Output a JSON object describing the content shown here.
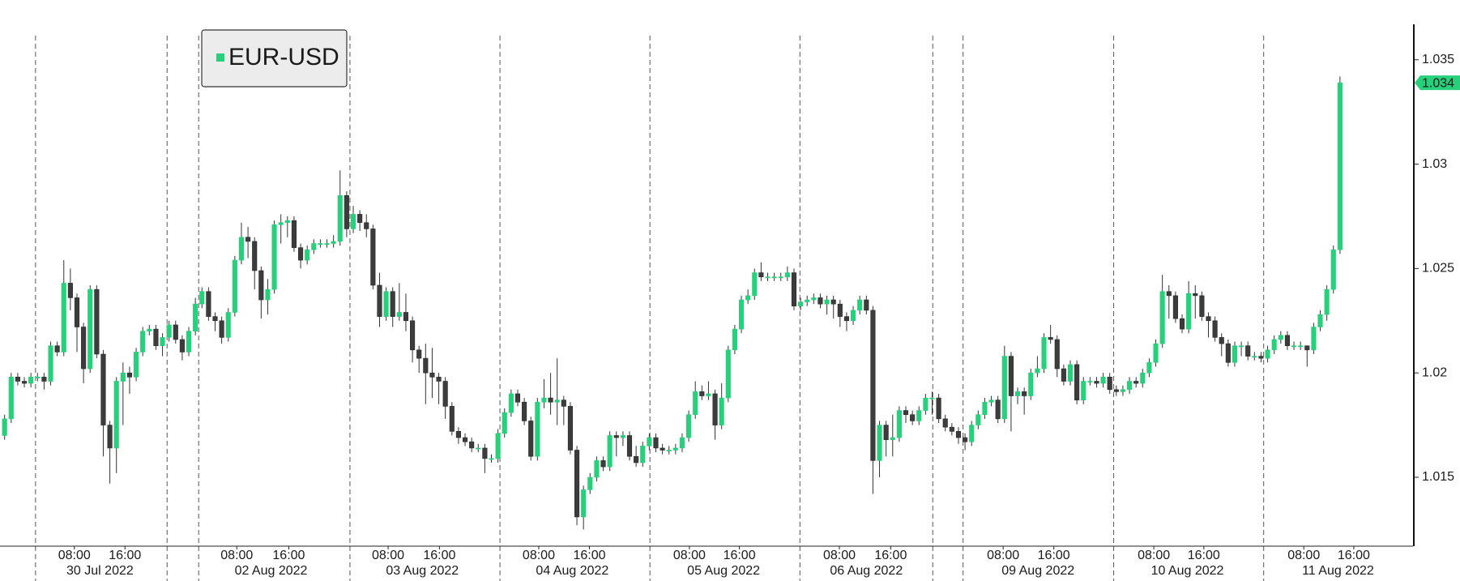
{
  "chart_data": {
    "type": "candlestick",
    "series": [
      {
        "name": "EUR-USD",
        "color": "#27d07b",
        "down_color": "#3c3c3c",
        "open": [
          1.017,
          1.0178,
          1.0198,
          1.0196,
          1.0195,
          1.0198,
          1.0198,
          1.0196,
          1.0213,
          1.021,
          1.0243,
          1.0236,
          1.0222,
          1.0202,
          1.024,
          1.0209,
          1.0175,
          1.0164,
          1.0196,
          1.02,
          1.0198,
          1.021,
          1.022,
          1.0221,
          1.0213,
          1.0217,
          1.0223,
          1.0216,
          1.021,
          1.022,
          1.0233,
          1.0239,
          1.0227,
          1.0225,
          1.0217,
          1.0229,
          1.0254,
          1.0265,
          1.0263,
          1.0249,
          1.0235,
          1.024,
          1.0271,
          1.0272,
          1.0273,
          1.026,
          1.0254,
          1.0259,
          1.0262,
          1.0262,
          1.0262,
          1.0263,
          1.0285,
          1.0269,
          1.0276,
          1.0272,
          1.0269,
          1.0242,
          1.0227,
          1.0239,
          1.0227,
          1.0229,
          1.0225,
          1.0211,
          1.0207,
          1.02,
          1.0198,
          1.0196,
          1.0184,
          1.0172,
          1.0169,
          1.0167,
          1.0164,
          1.0164,
          1.0159,
          1.0159,
          1.0171,
          1.0181,
          1.019,
          1.0186,
          1.0177,
          1.016,
          1.0186,
          1.0188,
          1.0186,
          1.0187,
          1.0184,
          1.0163,
          1.0131,
          1.0144,
          1.015,
          1.0158,
          1.0155,
          1.017,
          1.0169,
          1.017,
          1.016,
          1.0157,
          1.0165,
          1.0169,
          1.0164,
          1.0163,
          1.0163,
          1.0164,
          1.0169,
          1.018,
          1.0191,
          1.0189,
          1.019,
          1.0175,
          1.0188,
          1.0211,
          1.0221,
          1.0235,
          1.0237,
          1.0248,
          1.0246,
          1.0246,
          1.0246,
          1.0246,
          1.0248,
          1.0232,
          1.0234,
          1.0235,
          1.0236,
          1.0233,
          1.0235,
          1.0233,
          1.0227,
          1.0225,
          1.023,
          1.0235,
          1.023,
          1.0158,
          1.0175,
          1.0168,
          1.0169,
          1.0182,
          1.018,
          1.0177,
          1.0182,
          1.0188,
          1.0188,
          1.0178,
          1.0174,
          1.0172,
          1.0169,
          1.0167,
          1.0175,
          1.018,
          1.0186,
          1.0187,
          1.0178,
          1.0208,
          1.0189,
          1.0191,
          1.0189,
          1.02,
          1.0202,
          1.0217,
          1.0216,
          1.0202,
          1.0196,
          1.0204,
          1.0187,
          1.0196,
          1.0196,
          1.0195,
          1.0198,
          1.0192,
          1.0191,
          1.0192,
          1.0196,
          1.0195,
          1.02,
          1.0205,
          1.0214,
          1.0239,
          1.0237,
          1.0226,
          1.0221,
          1.0238,
          1.0237,
          1.0227,
          1.0225,
          1.0217,
          1.0214,
          1.0205,
          1.0213,
          1.0213,
          1.0208,
          1.0208,
          1.0207,
          1.0211,
          1.0216,
          1.0218,
          1.0213,
          1.0213,
          1.0213,
          1.0211,
          1.0222,
          1.0228,
          1.024,
          1.0259
        ],
        "high": [
          1.018,
          1.02,
          1.02,
          1.0198,
          1.02,
          1.02,
          1.02,
          1.0215,
          1.0215,
          1.0254,
          1.025,
          1.0238,
          1.0224,
          1.0242,
          1.0242,
          1.0211,
          1.0177,
          1.0198,
          1.0205,
          1.0203,
          1.0212,
          1.0222,
          1.0223,
          1.0223,
          1.0219,
          1.0225,
          1.0225,
          1.0218,
          1.0222,
          1.0236,
          1.0241,
          1.0241,
          1.0229,
          1.0227,
          1.0231,
          1.0256,
          1.0272,
          1.027,
          1.0265,
          1.0251,
          1.0245,
          1.0273,
          1.0276,
          1.0275,
          1.0275,
          1.0262,
          1.0261,
          1.0264,
          1.0264,
          1.0264,
          1.0266,
          1.0297,
          1.0287,
          1.028,
          1.0278,
          1.0276,
          1.0271,
          1.0248,
          1.0241,
          1.0241,
          1.0243,
          1.0238,
          1.0227,
          1.0213,
          1.0214,
          1.0212,
          1.02,
          1.0198,
          1.0186,
          1.0174,
          1.0171,
          1.0169,
          1.0166,
          1.0166,
          1.0161,
          1.0173,
          1.0183,
          1.0192,
          1.0192,
          1.0188,
          1.0179,
          1.0188,
          1.0197,
          1.02,
          1.0207,
          1.0189,
          1.0186,
          1.0165,
          1.0146,
          1.0152,
          1.016,
          1.016,
          1.0172,
          1.0172,
          1.0172,
          1.0172,
          1.0165,
          1.0167,
          1.0171,
          1.0171,
          1.0166,
          1.0165,
          1.0166,
          1.0171,
          1.0182,
          1.0196,
          1.0194,
          1.0196,
          1.0192,
          1.0195,
          1.0213,
          1.0223,
          1.0237,
          1.024,
          1.025,
          1.0253,
          1.0248,
          1.0248,
          1.0248,
          1.0251,
          1.025,
          1.0236,
          1.0237,
          1.0238,
          1.0238,
          1.0237,
          1.0237,
          1.0235,
          1.0229,
          1.0232,
          1.0237,
          1.0237,
          1.0232,
          1.0177,
          1.0177,
          1.018,
          1.0184,
          1.0184,
          1.0182,
          1.0184,
          1.019,
          1.0191,
          1.019,
          1.018,
          1.0176,
          1.0174,
          1.0171,
          1.0177,
          1.0182,
          1.0188,
          1.0189,
          1.0189,
          1.0213,
          1.021,
          1.0193,
          1.0193,
          1.0202,
          1.0208,
          1.0219,
          1.0223,
          1.0218,
          1.0204,
          1.0206,
          1.0206,
          1.0198,
          1.0198,
          1.0198,
          1.02,
          1.02,
          1.0194,
          1.0194,
          1.0198,
          1.0198,
          1.0202,
          1.0207,
          1.0216,
          1.0247,
          1.0242,
          1.0239,
          1.0228,
          1.0244,
          1.0242,
          1.0239,
          1.0229,
          1.0227,
          1.0219,
          1.0216,
          1.0215,
          1.0215,
          1.0215,
          1.021,
          1.021,
          1.0213,
          1.0218,
          1.022,
          1.022,
          1.0215,
          1.0215,
          1.0213,
          1.0224,
          1.023,
          1.0242,
          1.0261,
          1.0342
        ],
        "low": [
          1.0168,
          1.0176,
          1.0194,
          1.0193,
          1.0193,
          1.0196,
          1.0192,
          1.0194,
          1.0208,
          1.0208,
          1.023,
          1.021,
          1.0195,
          1.02,
          1.0207,
          1.016,
          1.0147,
          1.0152,
          1.0175,
          1.019,
          1.0196,
          1.0208,
          1.0218,
          1.0211,
          1.0208,
          1.0215,
          1.0214,
          1.0206,
          1.0208,
          1.0218,
          1.0231,
          1.0225,
          1.022,
          1.0214,
          1.0215,
          1.0227,
          1.0252,
          1.0255,
          1.024,
          1.0226,
          1.0228,
          1.0238,
          1.0262,
          1.0265,
          1.0258,
          1.025,
          1.0252,
          1.0257,
          1.026,
          1.026,
          1.026,
          1.0261,
          1.0265,
          1.0267,
          1.0268,
          1.0265,
          1.024,
          1.0222,
          1.0225,
          1.0222,
          1.0225,
          1.022,
          1.0205,
          1.02,
          1.0185,
          1.0188,
          1.0185,
          1.0178,
          1.017,
          1.0166,
          1.0165,
          1.0162,
          1.0162,
          1.0152,
          1.0157,
          1.0157,
          1.0169,
          1.0179,
          1.0184,
          1.0175,
          1.0158,
          1.0158,
          1.0183,
          1.018,
          1.0175,
          1.0175,
          1.0161,
          1.0127,
          1.0125,
          1.0142,
          1.0148,
          1.0153,
          1.0153,
          1.016,
          1.0165,
          1.0158,
          1.0155,
          1.0155,
          1.0163,
          1.0162,
          1.0161,
          1.0161,
          1.0161,
          1.0162,
          1.0167,
          1.0178,
          1.0187,
          1.0187,
          1.0168,
          1.0173,
          1.0186,
          1.0209,
          1.0219,
          1.0233,
          1.0235,
          1.0244,
          1.0244,
          1.0244,
          1.0244,
          1.0244,
          1.023,
          1.023,
          1.0232,
          1.0233,
          1.0231,
          1.0228,
          1.0226,
          1.0222,
          1.022,
          1.0223,
          1.0228,
          1.0228,
          1.0142,
          1.015,
          1.016,
          1.016,
          1.0167,
          1.0176,
          1.0175,
          1.0175,
          1.018,
          1.018,
          1.0176,
          1.0172,
          1.017,
          1.0166,
          1.0163,
          1.0165,
          1.0173,
          1.0178,
          1.0184,
          1.0176,
          1.0176,
          1.0172,
          1.0185,
          1.018,
          1.0187,
          1.0198,
          1.02,
          1.0214,
          1.0198,
          1.0194,
          1.0194,
          1.0185,
          1.0185,
          1.0194,
          1.0193,
          1.0193,
          1.019,
          1.0189,
          1.0189,
          1.019,
          1.0193,
          1.0193,
          1.0198,
          1.0203,
          1.0212,
          1.0226,
          1.0224,
          1.0219,
          1.0219,
          1.0226,
          1.0225,
          1.0217,
          1.0215,
          1.0208,
          1.0203,
          1.0203,
          1.0208,
          1.0206,
          1.0206,
          1.0205,
          1.0205,
          1.0209,
          1.0214,
          1.0211,
          1.0211,
          1.0211,
          1.0203,
          1.0209,
          1.022,
          1.0225,
          1.0238,
          1.0257
        ],
        "close": [
          1.0178,
          1.0198,
          1.0196,
          1.0195,
          1.0198,
          1.0198,
          1.0196,
          1.0213,
          1.021,
          1.0243,
          1.0236,
          1.0222,
          1.0202,
          1.024,
          1.0209,
          1.0175,
          1.0164,
          1.0196,
          1.02,
          1.0198,
          1.021,
          1.022,
          1.0221,
          1.0213,
          1.0217,
          1.0223,
          1.0216,
          1.021,
          1.022,
          1.0233,
          1.0239,
          1.0227,
          1.0225,
          1.0217,
          1.0229,
          1.0254,
          1.0265,
          1.0263,
          1.0249,
          1.0235,
          1.024,
          1.0271,
          1.0272,
          1.0273,
          1.026,
          1.0254,
          1.0259,
          1.0262,
          1.0262,
          1.0262,
          1.0263,
          1.0285,
          1.0269,
          1.0276,
          1.0272,
          1.0269,
          1.0242,
          1.0227,
          1.0239,
          1.0227,
          1.0229,
          1.0225,
          1.0211,
          1.0207,
          1.02,
          1.0198,
          1.0196,
          1.0184,
          1.0172,
          1.0169,
          1.0167,
          1.0164,
          1.0164,
          1.0159,
          1.0159,
          1.0171,
          1.0181,
          1.019,
          1.0186,
          1.0177,
          1.016,
          1.0186,
          1.0188,
          1.0186,
          1.0187,
          1.0184,
          1.0163,
          1.0131,
          1.0144,
          1.015,
          1.0158,
          1.0155,
          1.017,
          1.0169,
          1.017,
          1.016,
          1.0157,
          1.0165,
          1.0169,
          1.0164,
          1.0163,
          1.0163,
          1.0164,
          1.0169,
          1.018,
          1.0191,
          1.0189,
          1.019,
          1.0175,
          1.0188,
          1.0211,
          1.0221,
          1.0235,
          1.0237,
          1.0248,
          1.0246,
          1.0246,
          1.0246,
          1.0246,
          1.0248,
          1.0232,
          1.0234,
          1.0235,
          1.0236,
          1.0233,
          1.0235,
          1.0233,
          1.0227,
          1.0225,
          1.023,
          1.0235,
          1.023,
          1.0158,
          1.0175,
          1.0168,
          1.0169,
          1.0182,
          1.018,
          1.0177,
          1.0182,
          1.0188,
          1.0188,
          1.0178,
          1.0174,
          1.0172,
          1.0169,
          1.0167,
          1.0175,
          1.018,
          1.0186,
          1.0187,
          1.0178,
          1.0208,
          1.0189,
          1.0191,
          1.0189,
          1.02,
          1.0202,
          1.0217,
          1.0216,
          1.0202,
          1.0196,
          1.0204,
          1.0187,
          1.0196,
          1.0196,
          1.0195,
          1.0198,
          1.0192,
          1.0191,
          1.0192,
          1.0196,
          1.0195,
          1.02,
          1.0205,
          1.0214,
          1.0239,
          1.0237,
          1.0226,
          1.0221,
          1.0238,
          1.0237,
          1.0227,
          1.0225,
          1.0217,
          1.0214,
          1.0205,
          1.0213,
          1.0213,
          1.0208,
          1.0208,
          1.0207,
          1.0211,
          1.0216,
          1.0218,
          1.0213,
          1.0213,
          1.0213,
          1.0211,
          1.0222,
          1.0228,
          1.024,
          1.0259,
          1.0339
        ]
      }
    ],
    "last_price_label": "1.034",
    "xlim": [
      -0.7,
      214.1
    ],
    "xticks": [
      {
        "value": 10.6,
        "label": "08:00"
      },
      {
        "value": 18.3,
        "label": "16:00"
      },
      {
        "value": 35.3,
        "label": "08:00"
      },
      {
        "value": 43.2,
        "label": "16:00"
      },
      {
        "value": 58.3,
        "label": "08:00"
      },
      {
        "value": 66.1,
        "label": "16:00"
      },
      {
        "value": 81.2,
        "label": "08:00"
      },
      {
        "value": 88.9,
        "label": "16:00"
      },
      {
        "value": 104.1,
        "label": "08:00"
      },
      {
        "value": 111.7,
        "label": "16:00"
      },
      {
        "value": 126.9,
        "label": "08:00"
      },
      {
        "value": 134.7,
        "label": "16:00"
      },
      {
        "value": 151.8,
        "label": "08:00"
      },
      {
        "value": 159.5,
        "label": "16:00"
      },
      {
        "value": 174.7,
        "label": "08:00"
      },
      {
        "value": 182.3,
        "label": "16:00"
      },
      {
        "value": 197.5,
        "label": "08:00"
      },
      {
        "value": 205.1,
        "label": "16:00"
      }
    ],
    "date_labels": [
      {
        "value": 14.5,
        "label": "30 Jul 2022"
      },
      {
        "value": 40.5,
        "label": "02 Aug 2022"
      },
      {
        "value": 63.5,
        "label": "03 Aug 2022"
      },
      {
        "value": 86.3,
        "label": "04 Aug 2022"
      },
      {
        "value": 109.3,
        "label": "05 Aug 2022"
      },
      {
        "value": 131.0,
        "label": "06 Aug 2022"
      },
      {
        "value": 157.1,
        "label": "09 Aug 2022"
      },
      {
        "value": 179.8,
        "label": "10 Aug 2022"
      },
      {
        "value": 202.7,
        "label": "11 Aug 2022"
      }
    ],
    "day_breaks": [
      4.7,
      24.7,
      29.5,
      52.5,
      75.3,
      98.1,
      120.9,
      141.1,
      145.7,
      168.6,
      191.4
    ],
    "ylim": [
      1.0117,
      1.0367
    ],
    "yticks": [
      1.015,
      1.02,
      1.025,
      1.03,
      1.035
    ]
  }
}
